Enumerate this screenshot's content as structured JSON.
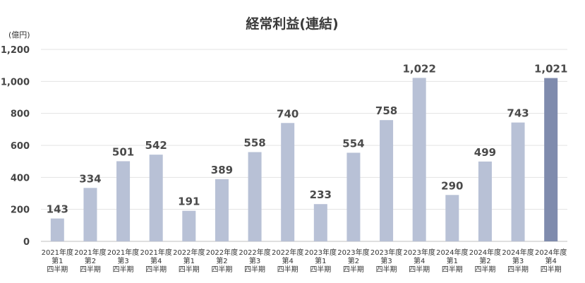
{
  "chart_data": {
    "type": "bar",
    "title": "経常利益(連結)",
    "unit_label": "(億円)",
    "ylim": [
      0,
      1200
    ],
    "yticks": [
      "0",
      "200",
      "400",
      "600",
      "800",
      "1,000",
      "1,200"
    ],
    "grid": true,
    "categories": [
      [
        "2021年度",
        "第1",
        "四半期"
      ],
      [
        "2021年度",
        "第2",
        "四半期"
      ],
      [
        "2021年度",
        "第3",
        "四半期"
      ],
      [
        "2021年度",
        "第4",
        "四半期"
      ],
      [
        "2022年度",
        "第1",
        "四半期"
      ],
      [
        "2022年度",
        "第2",
        "四半期"
      ],
      [
        "2022年度",
        "第3",
        "四半期"
      ],
      [
        "2022年度",
        "第4",
        "四半期"
      ],
      [
        "2023年度",
        "第1",
        "四半期"
      ],
      [
        "2023年度",
        "第2",
        "四半期"
      ],
      [
        "2023年度",
        "第3",
        "四半期"
      ],
      [
        "2023年度",
        "第4",
        "四半期"
      ],
      [
        "2024年度",
        "第1",
        "四半期"
      ],
      [
        "2024年度",
        "第2",
        "四半期"
      ],
      [
        "2024年度",
        "第3",
        "四半期"
      ],
      [
        "2024年度",
        "第4",
        "四半期"
      ]
    ],
    "values": [
      143,
      334,
      501,
      542,
      191,
      389,
      558,
      740,
      233,
      554,
      758,
      1022,
      290,
      499,
      743,
      1021
    ],
    "value_labels": [
      "143",
      "334",
      "501",
      "542",
      "191",
      "389",
      "558",
      "740",
      "233",
      "554",
      "758",
      "1,022",
      "290",
      "499",
      "743",
      "1,021"
    ],
    "colors": {
      "bar": "#b8c1d6",
      "highlight_bar": "#7f8bad"
    },
    "highlight_index": 15
  }
}
